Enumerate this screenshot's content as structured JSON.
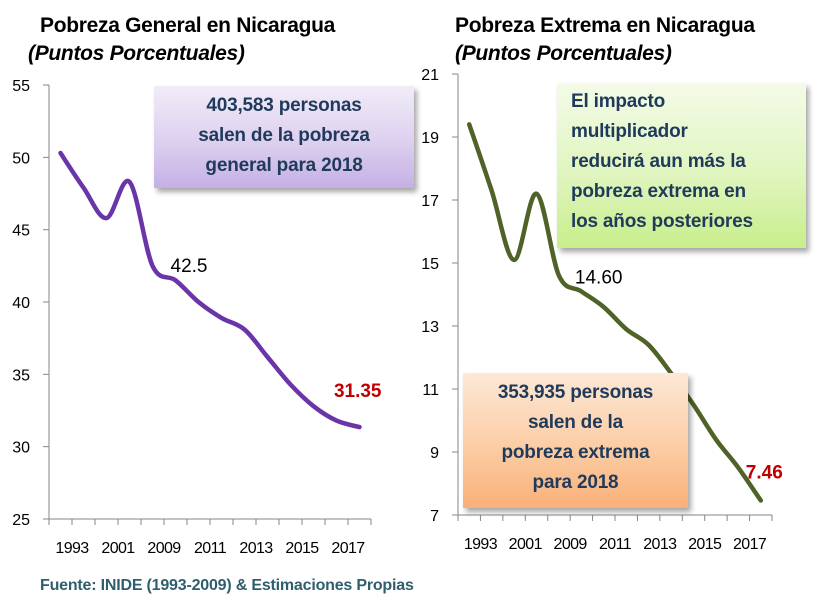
{
  "chart_data": [
    {
      "type": "line",
      "title": "Pobreza General en Nicaragua",
      "subtitle": "(Puntos Porcentuales)",
      "xlabel": "",
      "ylabel": "",
      "ylim": [
        25,
        55
      ],
      "yticks": [
        "55",
        "50",
        "45",
        "40",
        "35",
        "30",
        "25"
      ],
      "ytick_values": [
        55,
        50,
        45,
        40,
        35,
        30,
        25
      ],
      "categories": [
        "1993",
        "",
        "2001",
        "",
        "2009",
        "",
        "2011",
        "",
        "2013",
        "",
        "2015",
        "",
        "2017",
        ""
      ],
      "tick_labels": [
        "1993",
        "2001",
        "2009",
        "2011",
        "2013",
        "2015",
        "2017"
      ],
      "series": [
        {
          "name": "Pobreza General",
          "color": "#6a35a8",
          "smooth": true,
          "values": [
            50.3,
            47.9,
            45.8,
            48.3,
            42.5,
            41.5,
            40.0,
            38.9,
            38.1,
            36.2,
            34.3,
            32.8,
            31.8,
            31.35
          ]
        }
      ],
      "data_labels": [
        {
          "index": 4,
          "text": "42.5",
          "color": "#000000"
        },
        {
          "index": 13,
          "text": "31.35",
          "color": "#c00000"
        }
      ],
      "grid": false,
      "legend": "none"
    },
    {
      "type": "line",
      "title": "Pobreza Extrema en Nicaragua",
      "subtitle": "(Puntos Porcentuales)",
      "xlabel": "",
      "ylabel": "",
      "ylim": [
        7,
        21
      ],
      "yticks": [
        "21",
        "19",
        "17",
        "15",
        "13",
        "11",
        "9",
        "7"
      ],
      "ytick_values": [
        21,
        19,
        17,
        15,
        13,
        11,
        9,
        7
      ],
      "categories": [
        "1993",
        "",
        "2001",
        "",
        "2009",
        "",
        "2011",
        "",
        "2013",
        "",
        "2015",
        "",
        "2017",
        ""
      ],
      "tick_labels": [
        "1993",
        "2001",
        "2009",
        "2011",
        "2013",
        "2015",
        "2017"
      ],
      "series": [
        {
          "name": "Pobreza Extrema",
          "color": "#4f6228",
          "smooth": true,
          "values": [
            19.4,
            17.3,
            15.1,
            17.2,
            14.6,
            14.1,
            13.6,
            12.9,
            12.4,
            11.5,
            10.5,
            9.4,
            8.5,
            7.46
          ]
        }
      ],
      "data_labels": [
        {
          "index": 4,
          "text": "14.60",
          "color": "#000000"
        },
        {
          "index": 13,
          "text": "7.46",
          "color": "#c00000"
        }
      ],
      "grid": false,
      "legend": "none"
    }
  ],
  "callouts": {
    "general": [
      "403,583 personas",
      "salen de la pobreza",
      "general para 2018"
    ],
    "multiplier": [
      "El impacto",
      "multiplicador",
      "reducirá aun más la",
      "pobreza extrema en",
      "los años posteriores"
    ],
    "extrema": [
      "353,935 personas",
      "salen de la",
      "pobreza extrema",
      "para 2018"
    ]
  },
  "footer": "Fuente: INIDE (1993-2009) & Estimaciones Propias"
}
